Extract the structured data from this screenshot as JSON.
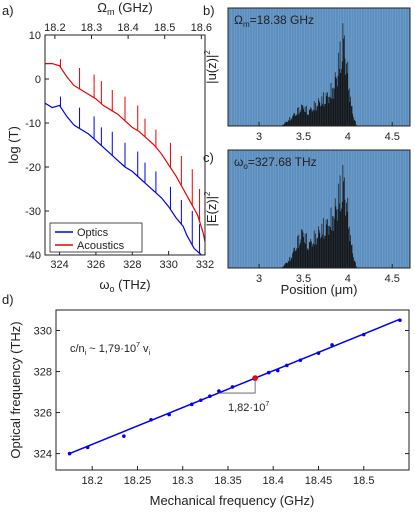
{
  "panels": {
    "a": {
      "label": "a)"
    },
    "b": {
      "label": "b)"
    },
    "c": {
      "label": "c)"
    },
    "d": {
      "label": "d)"
    }
  },
  "chart_data": [
    {
      "id": "a",
      "type": "line",
      "xlabel": "ω",
      "xlabel_sub": "o",
      "xlabel_unit": " (THz)",
      "top_xlabel": "Ω",
      "top_xlabel_sub": "m",
      "top_xlabel_unit": " (GHz)",
      "ylabel": "log (T)",
      "xlim": [
        323.2,
        332.0
      ],
      "ylim": [
        -40,
        10
      ],
      "xticks": [
        "324",
        "326",
        "328",
        "330",
        "332"
      ],
      "xtick_values": [
        324,
        326,
        328,
        330,
        332
      ],
      "top_xticks": [
        "18.2",
        "18.3",
        "18.4",
        "18.5",
        "18.6"
      ],
      "top_xtick_values": [
        18.2,
        18.3,
        18.4,
        18.5,
        18.6
      ],
      "yticks": [
        "10",
        "0",
        "-10",
        "-20",
        "-30",
        "-40"
      ],
      "ytick_values": [
        10,
        0,
        -10,
        -20,
        -30,
        -40
      ],
      "legend_position": "bottom-left",
      "series": [
        {
          "name": "Optics",
          "color": "#0000ee",
          "x": [
            323.2,
            323.6,
            324.0,
            324.4,
            324.8,
            325.2,
            325.6,
            326.0,
            326.4,
            326.8,
            327.2,
            327.6,
            328.0,
            328.4,
            328.8,
            329.2,
            329.6,
            330.0,
            330.4,
            330.8,
            331.0,
            331.4,
            331.8,
            332.0
          ],
          "y": [
            -5.5,
            -6.5,
            -6.0,
            -8.5,
            -10.5,
            -11.5,
            -12.5,
            -14.0,
            -15.5,
            -17.0,
            -18.5,
            -20.0,
            -21.0,
            -22.5,
            -24.0,
            -25.5,
            -27.0,
            -29.0,
            -31.5,
            -33.5,
            -35.5,
            -38.5,
            -40,
            -40
          ],
          "spikes": [
            [
              324.05,
              -4.0
            ],
            [
              325.1,
              -6.5
            ],
            [
              325.9,
              -8.5
            ],
            [
              326.3,
              -11.0
            ],
            [
              326.9,
              -12.0
            ],
            [
              327.6,
              -14.5
            ],
            [
              328.3,
              -16.5
            ],
            [
              328.7,
              -19.0
            ],
            [
              329.3,
              -21.0
            ],
            [
              330.1,
              -24.5
            ],
            [
              330.7,
              -27.5
            ],
            [
              331.3,
              -30.0
            ],
            [
              331.7,
              -33.0
            ]
          ]
        },
        {
          "name": "Acoustics",
          "color": "#ee0000",
          "x": [
            323.2,
            323.6,
            324.0,
            324.4,
            324.8,
            325.2,
            325.6,
            326.0,
            326.4,
            326.8,
            327.2,
            327.6,
            328.0,
            328.4,
            328.8,
            329.2,
            329.6,
            330.0,
            330.4,
            330.8,
            331.2,
            331.6,
            331.9,
            332.0
          ],
          "y": [
            3.5,
            3.5,
            3.0,
            0.5,
            -1.5,
            -2.5,
            -3.5,
            -4.5,
            -6.0,
            -7.0,
            -8.0,
            -9.5,
            -11.0,
            -12.0,
            -13.5,
            -15.0,
            -17.0,
            -19.5,
            -22.0,
            -25.0,
            -28.0,
            -31.0,
            -35.0,
            -37.0
          ],
          "spikes": [
            [
              324.05,
              4.5
            ],
            [
              325.1,
              2.5
            ],
            [
              325.9,
              1.0
            ],
            [
              326.3,
              -0.5
            ],
            [
              326.9,
              -2.5
            ],
            [
              327.6,
              -4.0
            ],
            [
              328.3,
              -6.0
            ],
            [
              328.7,
              -9.0
            ],
            [
              329.3,
              -11.5
            ],
            [
              330.1,
              -14.5
            ],
            [
              330.7,
              -17.5
            ],
            [
              331.3,
              -20.5
            ],
            [
              331.7,
              -25.0
            ]
          ]
        }
      ]
    },
    {
      "id": "b",
      "type": "area",
      "annotation": "Ω",
      "annotation_sub": "m",
      "annotation_value": "=18.38 GHz",
      "ylabel": "|u(z)|",
      "ylabel_sup": "2",
      "xlim": [
        2.65,
        4.7
      ],
      "xticks": [
        "3",
        "3.5",
        "4",
        "4.5"
      ],
      "xtick_values": [
        3,
        3.5,
        4,
        4.5
      ],
      "background": "#5c8fbf",
      "envelope": {
        "x": [
          3.25,
          3.35,
          3.45,
          3.5,
          3.55,
          3.6,
          3.7,
          3.8,
          3.85,
          3.9,
          3.95,
          4.0,
          4.05,
          4.1
        ],
        "y": [
          0.0,
          0.08,
          0.18,
          0.22,
          0.15,
          0.2,
          0.28,
          0.35,
          0.45,
          0.7,
          0.98,
          0.55,
          0.15,
          0.0
        ]
      }
    },
    {
      "id": "c",
      "type": "area",
      "annotation": "ω",
      "annotation_sub": "o",
      "annotation_value": "=327.68 THz",
      "ylabel": "|E(z)|",
      "ylabel_sup": "2",
      "xlabel": "Position (μm)",
      "xlim": [
        2.65,
        4.7
      ],
      "xticks": [
        "3",
        "3.5",
        "4",
        "4.5"
      ],
      "xtick_values": [
        3,
        3.5,
        4,
        4.5
      ],
      "background": "#5c8fbf",
      "envelope": {
        "x": [
          3.25,
          3.35,
          3.45,
          3.5,
          3.55,
          3.6,
          3.7,
          3.8,
          3.85,
          3.9,
          3.95,
          4.0,
          4.05,
          4.1
        ],
        "y": [
          0.0,
          0.1,
          0.32,
          0.4,
          0.25,
          0.3,
          0.42,
          0.5,
          0.6,
          0.8,
          0.97,
          0.6,
          0.18,
          0.0
        ]
      }
    },
    {
      "id": "d",
      "type": "scatter",
      "xlabel": "Mechanical frequency (GHz)",
      "ylabel": "Optical frequency (THz)",
      "xlim": [
        18.16,
        18.55
      ],
      "ylim": [
        323.2,
        331.0
      ],
      "xticks": [
        "18.2",
        "18.25",
        "18.3",
        "18.35",
        "18.4",
        "18.45",
        "18.5"
      ],
      "xtick_values": [
        18.2,
        18.25,
        18.3,
        18.35,
        18.4,
        18.45,
        18.5
      ],
      "yticks": [
        "324",
        "326",
        "328",
        "330"
      ],
      "ytick_values": [
        324,
        326,
        328,
        330
      ],
      "annotation_main": "c/n",
      "annotation_main_sub": "i",
      "annotation_main_rest": " ~ 1,79·10",
      "annotation_main_sup": "7",
      "annotation_main_tail": " v",
      "annotation_main_tail_sub": "i",
      "slope_label": "1,82·10",
      "slope_label_sup": "7",
      "points_color": "#0000ee",
      "fit_color": "#0000ee",
      "highlight_color": "#ee0000",
      "points": {
        "x": [
          18.175,
          18.195,
          18.235,
          18.265,
          18.285,
          18.31,
          18.32,
          18.33,
          18.34,
          18.355,
          18.38,
          18.395,
          18.405,
          18.415,
          18.43,
          18.45,
          18.465,
          18.5,
          18.54
        ],
        "y": [
          324.0,
          324.3,
          324.85,
          325.65,
          325.9,
          326.4,
          326.6,
          326.8,
          327.05,
          327.25,
          327.68,
          327.95,
          328.05,
          328.3,
          328.55,
          328.9,
          329.3,
          329.8,
          330.5
        ]
      },
      "highlight": {
        "x": 18.38,
        "y": 327.68
      },
      "fit": {
        "x": [
          18.175,
          18.54
        ],
        "y": [
          324.0,
          330.55
        ]
      }
    }
  ]
}
